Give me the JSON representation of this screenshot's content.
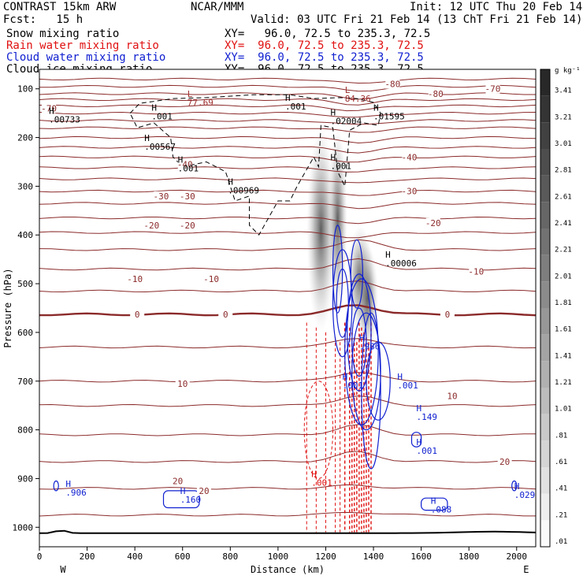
{
  "header": {
    "model": "CONTRAST 15km ARW",
    "org": "NCAR/MMM",
    "init": "Init: 12 UTC Thu 20 Feb 14",
    "fcst": "Fcst:   15 h",
    "valid": "Valid: 03 UTC Fri 21 Feb 14 (13 ChT Fri 21 Feb 14)"
  },
  "legend": [
    {
      "field": "Snow mixing ratio",
      "xy": "XY=   96.0, 72.5 to 235.3, 72.5",
      "color": "#000000"
    },
    {
      "field": "Rain water mixing ratio",
      "xy": "XY=  96.0, 72.5 to 235.3, 72.5",
      "color": "#e01010"
    },
    {
      "field": "Cloud water mixing ratio",
      "xy": "XY=  96.0, 72.5 to 235.3, 72.5",
      "color": "#1020d0"
    },
    {
      "field": "Cloud ice mixing ratio",
      "xy": "XY=  96.0, 72.5 to 235.3, 72.5",
      "color": "#000000"
    }
  ],
  "chart_data": {
    "type": "cross-section",
    "xlabel": "Distance (km)",
    "ylabel": "Pressure (hPa)",
    "xlim": [
      0,
      2080
    ],
    "ylim": [
      1040,
      60
    ],
    "x_ticks": [
      0,
      200,
      400,
      600,
      800,
      1000,
      1200,
      1400,
      1600,
      1800,
      2000
    ],
    "y_ticks": [
      100,
      200,
      300,
      400,
      500,
      600,
      700,
      800,
      900,
      1000
    ],
    "x_end_labels": {
      "left": "W",
      "right": "E"
    },
    "colorbar": {
      "unit": "g kg⁻¹",
      "labels": [
        "3.41",
        "3.21",
        "3.01",
        "2.81",
        "2.61",
        "2.41",
        "2.21",
        "2.01",
        "1.81",
        "1.61",
        "1.41",
        "1.21",
        "1.01",
        ".81",
        ".61",
        ".41",
        ".21",
        ".01"
      ]
    },
    "temperature_contours": [
      {
        "label": "-80",
        "x": 1480,
        "p": 90
      },
      {
        "label": "-80",
        "x": 1660,
        "p": 110
      },
      {
        "label": "-70",
        "x": 1900,
        "p": 100
      },
      {
        "label": "-70",
        "x": 40,
        "p": 140
      },
      {
        "label": "-40",
        "x": 610,
        "p": 255
      },
      {
        "label": "-40",
        "x": 1550,
        "p": 240
      },
      {
        "label": "-30",
        "x": 510,
        "p": 320
      },
      {
        "label": "-30",
        "x": 620,
        "p": 320
      },
      {
        "label": "-30",
        "x": 1550,
        "p": 310
      },
      {
        "label": "-20",
        "x": 470,
        "p": 380
      },
      {
        "label": "-20",
        "x": 620,
        "p": 380
      },
      {
        "label": "-20",
        "x": 1650,
        "p": 375
      },
      {
        "label": "-10",
        "x": 400,
        "p": 490
      },
      {
        "label": "-10",
        "x": 720,
        "p": 490
      },
      {
        "label": "-10",
        "x": 1830,
        "p": 475
      },
      {
        "label": "0",
        "x": 410,
        "p": 563
      },
      {
        "label": "0",
        "x": 780,
        "p": 563
      },
      {
        "label": "0",
        "x": 1710,
        "p": 563
      },
      {
        "label": "10",
        "x": 600,
        "p": 705
      },
      {
        "label": "10",
        "x": 1730,
        "p": 730
      },
      {
        "label": "20",
        "x": 580,
        "p": 905
      },
      {
        "label": "20",
        "x": 690,
        "p": 925
      },
      {
        "label": "20",
        "x": 1950,
        "p": 865
      }
    ],
    "extrema": [
      {
        "kind": "L",
        "value": "77.69",
        "x": 620,
        "p": 120,
        "color": "#a03030"
      },
      {
        "kind": "L",
        "value": "84.36",
        "x": 1280,
        "p": 112,
        "color": "#a03030"
      },
      {
        "kind": "H",
        "value": ".00733",
        "x": 40,
        "p": 155,
        "color": "#000000"
      },
      {
        "kind": "H",
        "value": ".001",
        "x": 470,
        "p": 148,
        "color": "#000000"
      },
      {
        "kind": "H",
        "value": ".001",
        "x": 1030,
        "p": 128,
        "color": "#000000"
      },
      {
        "kind": "H",
        "value": ".02004",
        "x": 1220,
        "p": 158,
        "color": "#000000"
      },
      {
        "kind": "H",
        "value": ".01595",
        "x": 1400,
        "p": 148,
        "color": "#000000"
      },
      {
        "kind": "H",
        "value": ".00567",
        "x": 440,
        "p": 210,
        "color": "#000000"
      },
      {
        "kind": "H",
        "value": ".001",
        "x": 580,
        "p": 255,
        "color": "#000000"
      },
      {
        "kind": "H",
        "value": ".00969",
        "x": 790,
        "p": 300,
        "color": "#000000"
      },
      {
        "kind": "H",
        "value": ".001",
        "x": 1220,
        "p": 250,
        "color": "#000000"
      },
      {
        "kind": "H",
        "value": ".00006",
        "x": 1450,
        "p": 450,
        "color": "#000000"
      },
      {
        "kind": "H",
        "value": ".986",
        "x": 1340,
        "p": 620,
        "color": "#1020d0"
      },
      {
        "kind": "H",
        "value": ".001",
        "x": 1270,
        "p": 700,
        "color": "#1020d0"
      },
      {
        "kind": "H",
        "value": ".001",
        "x": 1500,
        "p": 700,
        "color": "#1020d0"
      },
      {
        "kind": "H",
        "value": ".149",
        "x": 1580,
        "p": 765,
        "color": "#1020d0"
      },
      {
        "kind": "H",
        "value": ".001",
        "x": 1580,
        "p": 835,
        "color": "#1020d0"
      },
      {
        "kind": "H",
        "value": ".001",
        "x": 1140,
        "p": 900,
        "color": "#e01010"
      },
      {
        "kind": "H",
        "value": ".906",
        "x": 110,
        "p": 920,
        "color": "#1020d0"
      },
      {
        "kind": "H",
        "value": ".160",
        "x": 590,
        "p": 935,
        "color": "#1020d0"
      },
      {
        "kind": "H",
        "value": ".088",
        "x": 1640,
        "p": 955,
        "color": "#1020d0"
      },
      {
        "kind": "H",
        "value": ".029",
        "x": 1990,
        "p": 925,
        "color": "#1020d0"
      }
    ]
  }
}
